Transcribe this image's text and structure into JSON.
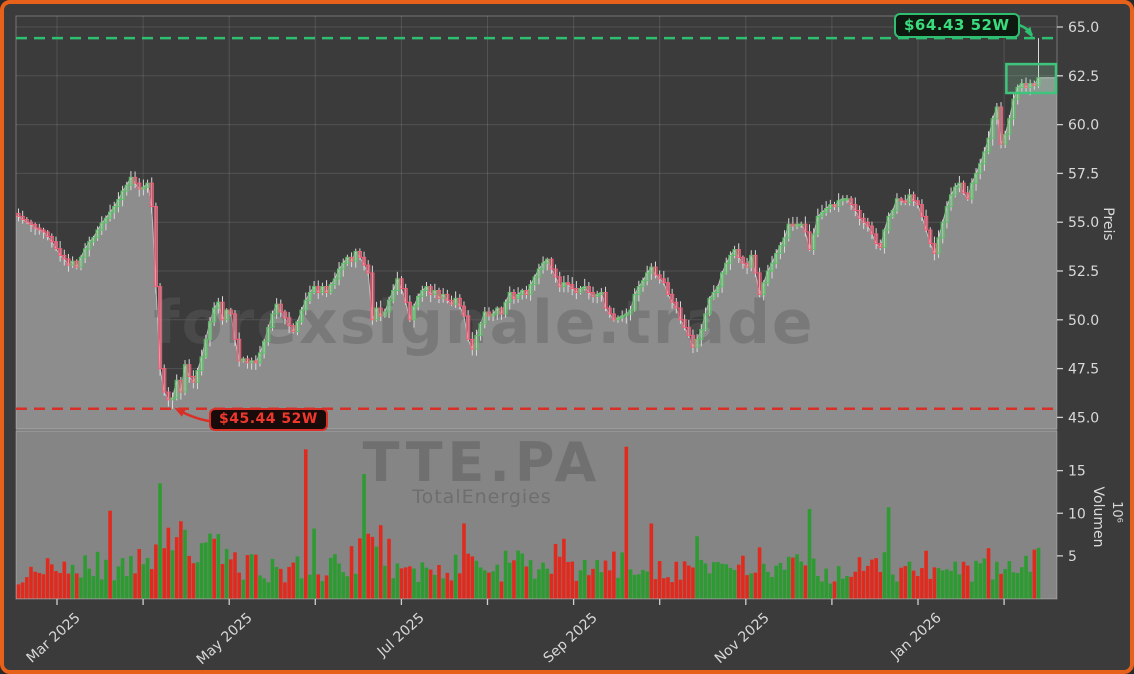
{
  "window": {
    "background": "#3b3b3b",
    "border_color": "#e8611a"
  },
  "watermarks": {
    "main": "forexsignale.trade",
    "symbol": "TTE.PA",
    "subtitle": "TotalEnergies"
  },
  "annotations": {
    "high": {
      "value": 64.43,
      "label": "$64.43 52W",
      "color": "#2fbf71"
    },
    "low": {
      "value": 45.44,
      "label": "$45.44 52W",
      "color": "#da2f27"
    },
    "consolidation_box": {
      "start_index": 238,
      "price_top": 63.1,
      "price_bottom": 61.62,
      "color": "#3fc47c"
    }
  },
  "axes": {
    "price": {
      "title": "Preis",
      "tick_values": [
        65.0,
        62.5,
        60.0,
        57.5,
        55.0,
        52.5,
        50.0,
        47.5,
        45.0
      ],
      "tick_labels": [
        "65.0",
        "62.5",
        "60.0",
        "57.5",
        "55.0",
        "52.5",
        "50.0",
        "47.5",
        "45.0"
      ]
    },
    "volume": {
      "title": "Volumen",
      "multiplier": "10⁶",
      "tick_values": [
        15,
        10,
        5
      ],
      "tick_labels": [
        "15",
        "10",
        "5"
      ]
    },
    "x": {
      "month_gridlines": 12,
      "labels": [
        {
          "month_index": 0,
          "label": "Mar 2025"
        },
        {
          "month_index": 2,
          "label": "May 2025"
        },
        {
          "month_index": 4,
          "label": "Jul 2025"
        },
        {
          "month_index": 6,
          "label": "Sep 2025"
        },
        {
          "month_index": 8,
          "label": "Nov 2025"
        },
        {
          "month_index": 10,
          "label": "Jan 2026"
        }
      ]
    }
  },
  "colors": {
    "up_edge": "#5fbf69",
    "down_edge": "#ef5f78",
    "up_fill": "rgba(95,191,105,0.35)",
    "down_fill": "rgba(239,95,120,0.40)",
    "wick": "#d9d9d9",
    "vol_up": "#2d9b31",
    "vol_down": "#e02a1e",
    "area": "#8d8d8d",
    "area_line": "#cfcfcf",
    "volume_bg": "#858585",
    "grid": "rgba(255,255,255,0.12)",
    "spine": "rgba(225,225,225,0.35)",
    "tick": "#cfcfcf",
    "separator": "#707070"
  },
  "chart_data": {
    "type": "candlestick+volume",
    "title": "",
    "xlabel": "",
    "ylabel_price": "Preis",
    "ylabel_volume": "Volumen",
    "bars": 246,
    "seed": 42,
    "price_range": [
      44.4,
      65.56
    ],
    "volume_range_millions": [
      0,
      19.7
    ],
    "high_52w": 64.43,
    "low_52w": 45.44,
    "close_anchors": [
      [
        0,
        55.3
      ],
      [
        2,
        55.0
      ],
      [
        4,
        54.7
      ],
      [
        6,
        54.5
      ],
      [
        8,
        54.0
      ],
      [
        10,
        53.3
      ],
      [
        12,
        52.8
      ],
      [
        13,
        53.0
      ],
      [
        14,
        52.7
      ],
      [
        15,
        53.2
      ],
      [
        17,
        54.0
      ],
      [
        19,
        54.6
      ],
      [
        21,
        55.2
      ],
      [
        23,
        55.8
      ],
      [
        25,
        56.6
      ],
      [
        27,
        57.3
      ],
      [
        29,
        56.7
      ],
      [
        31,
        57.0
      ],
      [
        32,
        55.8
      ],
      [
        33,
        51.7
      ],
      [
        34,
        47.5
      ],
      [
        35,
        46.3
      ],
      [
        36,
        45.9
      ],
      [
        37,
        46.0
      ],
      [
        38,
        46.9
      ],
      [
        39,
        46.3
      ],
      [
        40,
        47.7
      ],
      [
        41,
        47.1
      ],
      [
        42,
        46.8
      ],
      [
        43,
        47.4
      ],
      [
        44,
        48.1
      ],
      [
        45,
        49.0
      ],
      [
        46,
        49.9
      ],
      [
        47,
        50.6
      ],
      [
        48,
        50.9
      ],
      [
        49,
        50.0
      ],
      [
        50,
        50.5
      ],
      [
        51,
        50.3
      ],
      [
        52,
        49.0
      ],
      [
        53,
        47.9
      ],
      [
        54,
        48.0
      ],
      [
        55,
        47.8
      ],
      [
        56,
        47.9
      ],
      [
        57,
        47.8
      ],
      [
        58,
        48.3
      ],
      [
        59,
        48.9
      ],
      [
        60,
        49.6
      ],
      [
        61,
        50.3
      ],
      [
        62,
        50.8
      ],
      [
        63,
        50.4
      ],
      [
        64,
        50.1
      ],
      [
        65,
        49.7
      ],
      [
        66,
        49.4
      ],
      [
        67,
        49.9
      ],
      [
        68,
        50.5
      ],
      [
        69,
        51.0
      ],
      [
        70,
        51.4
      ],
      [
        71,
        51.7
      ],
      [
        72,
        51.4
      ],
      [
        73,
        51.7
      ],
      [
        74,
        51.4
      ],
      [
        75,
        51.8
      ],
      [
        76,
        52.1
      ],
      [
        77,
        52.6
      ],
      [
        78,
        52.9
      ],
      [
        79,
        53.2
      ],
      [
        80,
        53.0
      ],
      [
        81,
        53.5
      ],
      [
        82,
        53.2
      ],
      [
        83,
        52.8
      ],
      [
        84,
        52.4
      ],
      [
        85,
        50.0
      ],
      [
        86,
        50.6
      ],
      [
        87,
        50.2
      ],
      [
        88,
        50.4
      ],
      [
        89,
        51.0
      ],
      [
        90,
        51.5
      ],
      [
        91,
        52.1
      ],
      [
        92,
        51.6
      ],
      [
        93,
        50.9
      ],
      [
        94,
        50.0
      ],
      [
        95,
        50.7
      ],
      [
        96,
        51.2
      ],
      [
        97,
        51.5
      ],
      [
        98,
        51.7
      ],
      [
        99,
        51.3
      ],
      [
        100,
        51.5
      ],
      [
        101,
        51.1
      ],
      [
        102,
        51.3
      ],
      [
        103,
        51.0
      ],
      [
        104,
        50.8
      ],
      [
        105,
        51.1
      ],
      [
        106,
        50.7
      ],
      [
        107,
        50.2
      ],
      [
        108,
        49.0
      ],
      [
        109,
        48.5
      ],
      [
        110,
        49.2
      ],
      [
        111,
        49.8
      ],
      [
        112,
        50.4
      ],
      [
        113,
        50.2
      ],
      [
        114,
        50.3
      ],
      [
        115,
        50.6
      ],
      [
        116,
        50.3
      ],
      [
        117,
        50.9
      ],
      [
        118,
        51.4
      ],
      [
        119,
        51.1
      ],
      [
        120,
        51.3
      ],
      [
        121,
        51.5
      ],
      [
        122,
        51.3
      ],
      [
        123,
        51.8
      ],
      [
        124,
        52.2
      ],
      [
        125,
        52.6
      ],
      [
        126,
        52.9
      ],
      [
        127,
        53.1
      ],
      [
        128,
        52.6
      ],
      [
        129,
        52.2
      ],
      [
        130,
        51.7
      ],
      [
        131,
        51.9
      ],
      [
        132,
        51.8
      ],
      [
        133,
        51.6
      ],
      [
        134,
        51.4
      ],
      [
        135,
        51.6
      ],
      [
        136,
        51.7
      ],
      [
        137,
        51.4
      ],
      [
        138,
        51.2
      ],
      [
        139,
        51.3
      ],
      [
        140,
        51.4
      ],
      [
        141,
        50.6
      ],
      [
        142,
        50.3
      ],
      [
        143,
        50.0
      ],
      [
        144,
        50.1
      ],
      [
        145,
        50.2
      ],
      [
        146,
        50.3
      ],
      [
        147,
        50.5
      ],
      [
        148,
        51.3
      ],
      [
        149,
        51.7
      ],
      [
        150,
        52.0
      ],
      [
        151,
        52.4
      ],
      [
        152,
        52.7
      ],
      [
        153,
        52.3
      ],
      [
        154,
        52.1
      ],
      [
        155,
        51.9
      ],
      [
        156,
        51.3
      ],
      [
        157,
        50.9
      ],
      [
        158,
        50.6
      ],
      [
        159,
        50.0
      ],
      [
        160,
        49.6
      ],
      [
        161,
        49.2
      ],
      [
        162,
        48.6
      ],
      [
        163,
        49.0
      ],
      [
        164,
        49.5
      ],
      [
        165,
        50.3
      ],
      [
        166,
        51.1
      ],
      [
        167,
        51.4
      ],
      [
        168,
        51.7
      ],
      [
        169,
        52.4
      ],
      [
        170,
        52.9
      ],
      [
        171,
        53.3
      ],
      [
        172,
        53.6
      ],
      [
        173,
        53.2
      ],
      [
        174,
        52.9
      ],
      [
        175,
        52.7
      ],
      [
        176,
        53.3
      ],
      [
        177,
        52.4
      ],
      [
        178,
        51.3
      ],
      [
        179,
        51.9
      ],
      [
        180,
        52.5
      ],
      [
        181,
        52.9
      ],
      [
        182,
        53.4
      ],
      [
        183,
        53.8
      ],
      [
        184,
        54.2
      ],
      [
        185,
        54.9
      ],
      [
        186,
        54.8
      ],
      [
        187,
        54.9
      ],
      [
        188,
        54.9
      ],
      [
        189,
        54.5
      ],
      [
        190,
        53.6
      ],
      [
        191,
        54.4
      ],
      [
        192,
        55.3
      ],
      [
        193,
        55.5
      ],
      [
        194,
        55.7
      ],
      [
        195,
        55.9
      ],
      [
        196,
        55.8
      ],
      [
        197,
        56.1
      ],
      [
        199,
        56.2
      ],
      [
        200,
        55.9
      ],
      [
        201,
        55.6
      ],
      [
        202,
        55.2
      ],
      [
        203,
        55.0
      ],
      [
        204,
        54.8
      ],
      [
        205,
        54.4
      ],
      [
        206,
        53.9
      ],
      [
        207,
        53.7
      ],
      [
        208,
        54.6
      ],
      [
        209,
        55.3
      ],
      [
        210,
        55.6
      ],
      [
        211,
        56.2
      ],
      [
        212,
        56.1
      ],
      [
        213,
        56.0
      ],
      [
        214,
        56.4
      ],
      [
        215,
        56.1
      ],
      [
        216,
        55.9
      ],
      [
        217,
        55.3
      ],
      [
        218,
        54.6
      ],
      [
        219,
        53.9
      ],
      [
        220,
        53.4
      ],
      [
        221,
        54.2
      ],
      [
        222,
        55.0
      ],
      [
        223,
        55.8
      ],
      [
        224,
        56.4
      ],
      [
        225,
        56.8
      ],
      [
        226,
        57.0
      ],
      [
        227,
        56.5
      ],
      [
        228,
        56.2
      ],
      [
        229,
        57.0
      ],
      [
        230,
        57.5
      ],
      [
        231,
        58.0
      ],
      [
        232,
        58.6
      ],
      [
        233,
        59.3
      ],
      [
        234,
        60.3
      ],
      [
        235,
        60.9
      ],
      [
        236,
        59.0
      ],
      [
        237,
        59.5
      ],
      [
        238,
        60.3
      ],
      [
        239,
        61.3
      ],
      [
        240,
        61.9
      ],
      [
        241,
        62.1
      ],
      [
        242,
        61.9
      ],
      [
        243,
        62.1
      ],
      [
        244,
        62.0
      ],
      [
        245,
        62.4
      ]
    ],
    "special_bars": {
      "low_bar": {
        "index": 37,
        "low": 45.44
      },
      "last_bar": {
        "index": 245,
        "high": 64.43,
        "close": 62.4
      }
    },
    "volume_base_anchors_millions": [
      [
        0,
        2.8
      ],
      [
        6,
        3.2
      ],
      [
        12,
        3.6
      ],
      [
        18,
        4.0
      ],
      [
        24,
        3.4
      ],
      [
        30,
        4.2
      ],
      [
        33,
        7.0
      ],
      [
        37,
        6.2
      ],
      [
        41,
        6.6
      ],
      [
        45,
        5.2
      ],
      [
        48,
        5.6
      ],
      [
        52,
        4.2
      ],
      [
        56,
        3.8
      ],
      [
        60,
        3.4
      ],
      [
        64,
        3.0
      ],
      [
        68,
        4.2
      ],
      [
        72,
        3.2
      ],
      [
        76,
        3.6
      ],
      [
        80,
        4.8
      ],
      [
        84,
        5.4
      ],
      [
        88,
        4.4
      ],
      [
        92,
        3.4
      ],
      [
        96,
        3.2
      ],
      [
        100,
        3.0
      ],
      [
        104,
        3.3
      ],
      [
        108,
        4.8
      ],
      [
        112,
        3.6
      ],
      [
        116,
        3.2
      ],
      [
        120,
        4.2
      ],
      [
        124,
        3.4
      ],
      [
        128,
        4.0
      ],
      [
        132,
        3.1
      ],
      [
        136,
        3.4
      ],
      [
        140,
        3.6
      ],
      [
        144,
        4.0
      ],
      [
        148,
        3.4
      ],
      [
        152,
        4.2
      ],
      [
        156,
        3.2
      ],
      [
        160,
        3.6
      ],
      [
        164,
        4.0
      ],
      [
        168,
        3.2
      ],
      [
        172,
        3.8
      ],
      [
        176,
        3.2
      ],
      [
        180,
        3.6
      ],
      [
        184,
        3.2
      ],
      [
        188,
        4.0
      ],
      [
        192,
        3.4
      ],
      [
        196,
        3.0
      ],
      [
        200,
        3.6
      ],
      [
        204,
        3.2
      ],
      [
        208,
        4.2
      ],
      [
        212,
        3.0
      ],
      [
        216,
        3.4
      ],
      [
        220,
        2.7
      ],
      [
        224,
        3.2
      ],
      [
        228,
        3.0
      ],
      [
        232,
        3.6
      ],
      [
        236,
        3.2
      ],
      [
        240,
        3.4
      ],
      [
        245,
        4.2
      ]
    ],
    "volume_spikes_millions": [
      [
        22,
        10.3,
        "red"
      ],
      [
        34,
        13.5,
        "green"
      ],
      [
        36,
        8.3,
        "red"
      ],
      [
        38,
        7.2,
        "red"
      ],
      [
        47,
        7.0,
        "red"
      ],
      [
        69,
        17.5,
        "red"
      ],
      [
        71,
        8.2,
        "green"
      ],
      [
        83,
        14.6,
        "green"
      ],
      [
        87,
        8.6,
        "red"
      ],
      [
        89,
        7.0,
        "red"
      ],
      [
        107,
        8.8,
        "red"
      ],
      [
        117,
        5.6,
        "green"
      ],
      [
        129,
        6.4,
        "red"
      ],
      [
        131,
        7.0,
        "red"
      ],
      [
        146,
        17.8,
        "red"
      ],
      [
        152,
        8.8,
        "red"
      ],
      [
        163,
        7.3,
        "green"
      ],
      [
        178,
        6.0,
        "red"
      ],
      [
        190,
        10.5,
        "green"
      ],
      [
        209,
        10.7,
        "green"
      ],
      [
        218,
        5.6,
        "red"
      ],
      [
        233,
        5.9,
        "red"
      ],
      [
        242,
        5.0,
        "green"
      ]
    ]
  }
}
